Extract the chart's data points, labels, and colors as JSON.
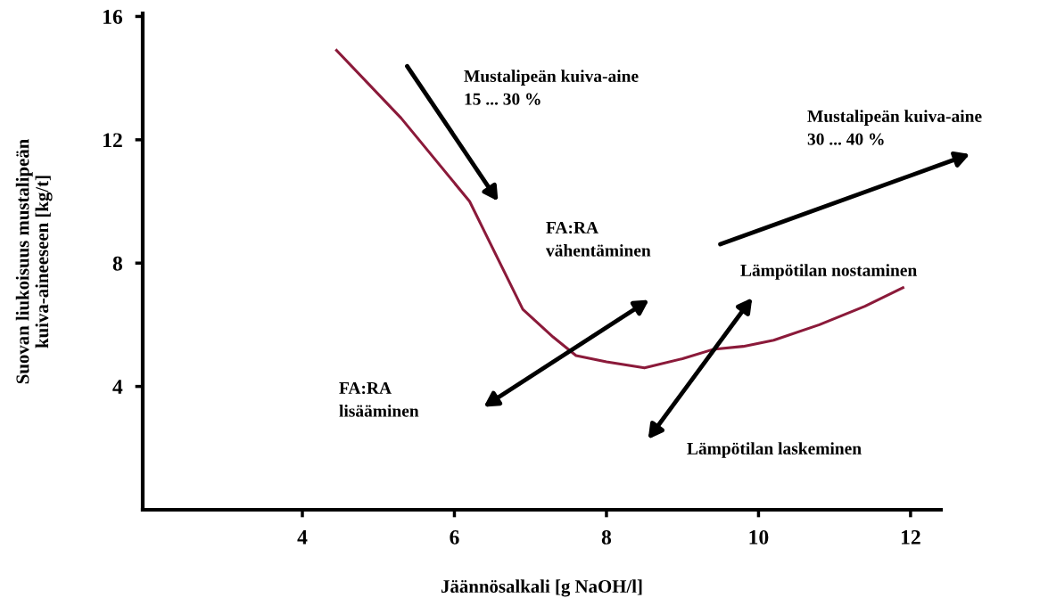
{
  "chart_data": {
    "type": "line",
    "xlabel": "Jäännösalkali [g NaOH/l]",
    "ylabel": "Suovan liukoisuus mustalipeän\nkuiva-aineeseen [kg/t]",
    "xlim": [
      1.9,
      12.4
    ],
    "ylim": [
      0,
      16.1
    ],
    "xticks": [
      4,
      6,
      8,
      10,
      12
    ],
    "yticks": [
      4,
      8,
      12,
      16
    ],
    "grid": false,
    "marker": "none",
    "line_style": "solid",
    "series": [
      {
        "color": "#8b1a3a",
        "x": [
          4.45,
          5.3,
          6.2,
          6.9,
          7.3,
          7.6,
          8.0,
          8.5,
          9.0,
          9.4,
          9.8,
          10.2,
          10.8,
          11.4,
          11.9
        ],
        "values": [
          14.9,
          12.7,
          10.0,
          6.5,
          5.6,
          5.0,
          4.8,
          4.6,
          4.9,
          5.2,
          5.3,
          5.5,
          6.0,
          6.6,
          7.2
        ]
      }
    ],
    "annotations": [
      "Mustalipeän kuiva-aine\n15 ... 30 %",
      "Mustalipeän kuiva-aine\n30 ... 40 %",
      "FA:RA\nvähentäminen",
      "Lämpötilan nostaminen",
      "FA:RA\nlisääminen",
      "Lämpötilan laskeminen"
    ]
  }
}
